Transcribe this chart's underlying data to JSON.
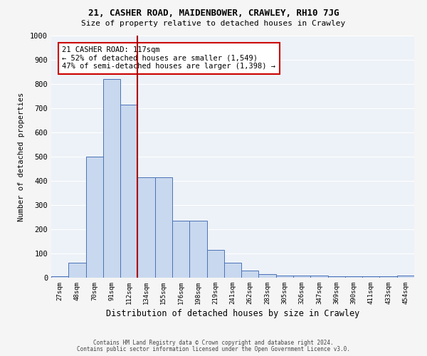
{
  "title1": "21, CASHER ROAD, MAIDENBOWER, CRAWLEY, RH10 7JG",
  "title2": "Size of property relative to detached houses in Crawley",
  "xlabel": "Distribution of detached houses by size in Crawley",
  "ylabel": "Number of detached properties",
  "footer1": "Contains HM Land Registry data © Crown copyright and database right 2024.",
  "footer2": "Contains public sector information licensed under the Open Government Licence v3.0.",
  "bar_labels": [
    "27sqm",
    "48sqm",
    "70sqm",
    "91sqm",
    "112sqm",
    "134sqm",
    "155sqm",
    "176sqm",
    "198sqm",
    "219sqm",
    "241sqm",
    "262sqm",
    "283sqm",
    "305sqm",
    "326sqm",
    "347sqm",
    "369sqm",
    "390sqm",
    "411sqm",
    "433sqm",
    "454sqm"
  ],
  "bar_values": [
    5,
    62,
    500,
    820,
    715,
    415,
    415,
    235,
    235,
    115,
    62,
    30,
    15,
    10,
    10,
    10,
    5,
    5,
    5,
    5,
    10
  ],
  "bar_color": "#c8d8ee",
  "bar_edge_color": "#4a72b8",
  "vline_x_bar_index": 4.5,
  "vline_color": "#aa0000",
  "annotation_text": "21 CASHER ROAD: 117sqm\n← 52% of detached houses are smaller (1,549)\n47% of semi-detached houses are larger (1,398) →",
  "annotation_box_color": "#ffffff",
  "annotation_box_edge_color": "#cc0000",
  "bg_color": "#edf2f8",
  "grid_color": "#ffffff",
  "fig_bg_color": "#f5f5f5",
  "ylim": [
    0,
    1000
  ],
  "yticks": [
    0,
    100,
    200,
    300,
    400,
    500,
    600,
    700,
    800,
    900,
    1000
  ]
}
